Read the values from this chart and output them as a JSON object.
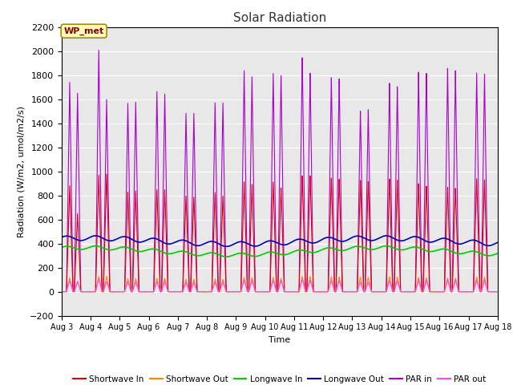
{
  "title": "Solar Radiation",
  "ylabel": "Radiation (W/m2, umol/m2/s)",
  "xlabel": "Time",
  "ylim": [
    -200,
    2200
  ],
  "xlim": [
    0,
    15
  ],
  "x_tick_labels": [
    "Aug 3",
    "Aug 4",
    "Aug 5",
    "Aug 6",
    "Aug 7",
    "Aug 8",
    "Aug 9",
    "Aug 10",
    "Aug 11",
    "Aug 12",
    "Aug 13",
    "Aug 14",
    "Aug 15",
    "Aug 16",
    "Aug 17",
    "Aug 18"
  ],
  "station_label": "WP_met",
  "bg_color": "#e8e8e8",
  "colors": {
    "shortwave_in": "#dd0000",
    "shortwave_out": "#ff8800",
    "longwave_in": "#00cc00",
    "longwave_out": "#0000bb",
    "par_in": "#aa00cc",
    "par_out": "#ff44ff"
  },
  "labels": {
    "shortwave_in": "Shortwave In",
    "shortwave_out": "Shortwave Out",
    "longwave_in": "Longwave In",
    "longwave_out": "Longwave Out",
    "par_in": "PAR in",
    "par_out": "PAR out"
  },
  "sw_in_peaks_day1": [
    880,
    970
  ],
  "sw_in_peaks_day2": [
    830,
    970
  ],
  "par_scale": 1.95
}
